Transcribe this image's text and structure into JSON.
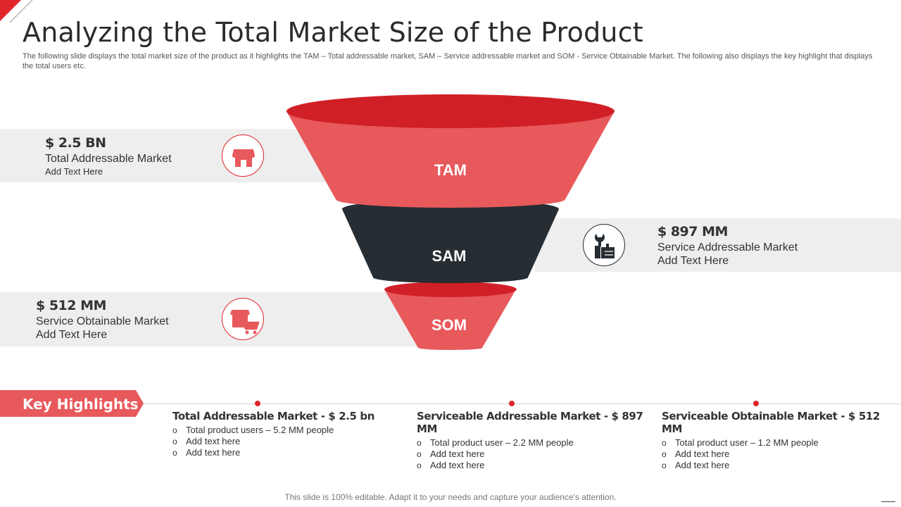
{
  "title": "Analyzing the Total Market Size of the Product",
  "subtitle": "The following slide displays the total market size of the product as it highlights the TAM – Total addressable market, SAM – Service addressable market and SOM - Service Obtainable Market. The following also displays the key highlight that displays the total users etc.",
  "colors": {
    "accent": "#e0252b",
    "funnel_light": "#e8595c",
    "funnel_top": "#d01f26",
    "dark": "#262d33",
    "band": "#eeeeee"
  },
  "funnel": [
    {
      "label": "TAM",
      "value": "$ 2.5 BN",
      "name": "Total Addressable Market",
      "sub": "Add Text Here",
      "icon": "storefront-icon"
    },
    {
      "label": "SAM",
      "value": "$ 897 MM",
      "name": "Service Addressable Market",
      "sub": "Add Text Here",
      "icon": "wrench-hand-icon"
    },
    {
      "label": "SOM",
      "value": "$ 512 MM",
      "name": "Service Obtainable Market",
      "sub": "Add Text Here",
      "icon": "shop-cart-icon"
    }
  ],
  "key_highlights": {
    "label": "Key Highlights",
    "columns": [
      {
        "heading": "Total Addressable Market - $ 2.5 bn",
        "items": [
          "Total product users – 5.2 MM people",
          "Add text here",
          "Add text here"
        ]
      },
      {
        "heading": "Serviceable Addressable Market - $ 897 MM",
        "items": [
          "Total product user – 2.2 MM people",
          "Add text here",
          "Add text here"
        ]
      },
      {
        "heading": "Serviceable Obtainable Market - $ 512 MM",
        "items": [
          "Total product user – 1.2 MM people",
          "Add text here",
          "Add text here"
        ]
      }
    ]
  },
  "bullet_char": "o",
  "footer": "This slide is 100% editable. Adapt it to your needs and capture your audience's attention."
}
